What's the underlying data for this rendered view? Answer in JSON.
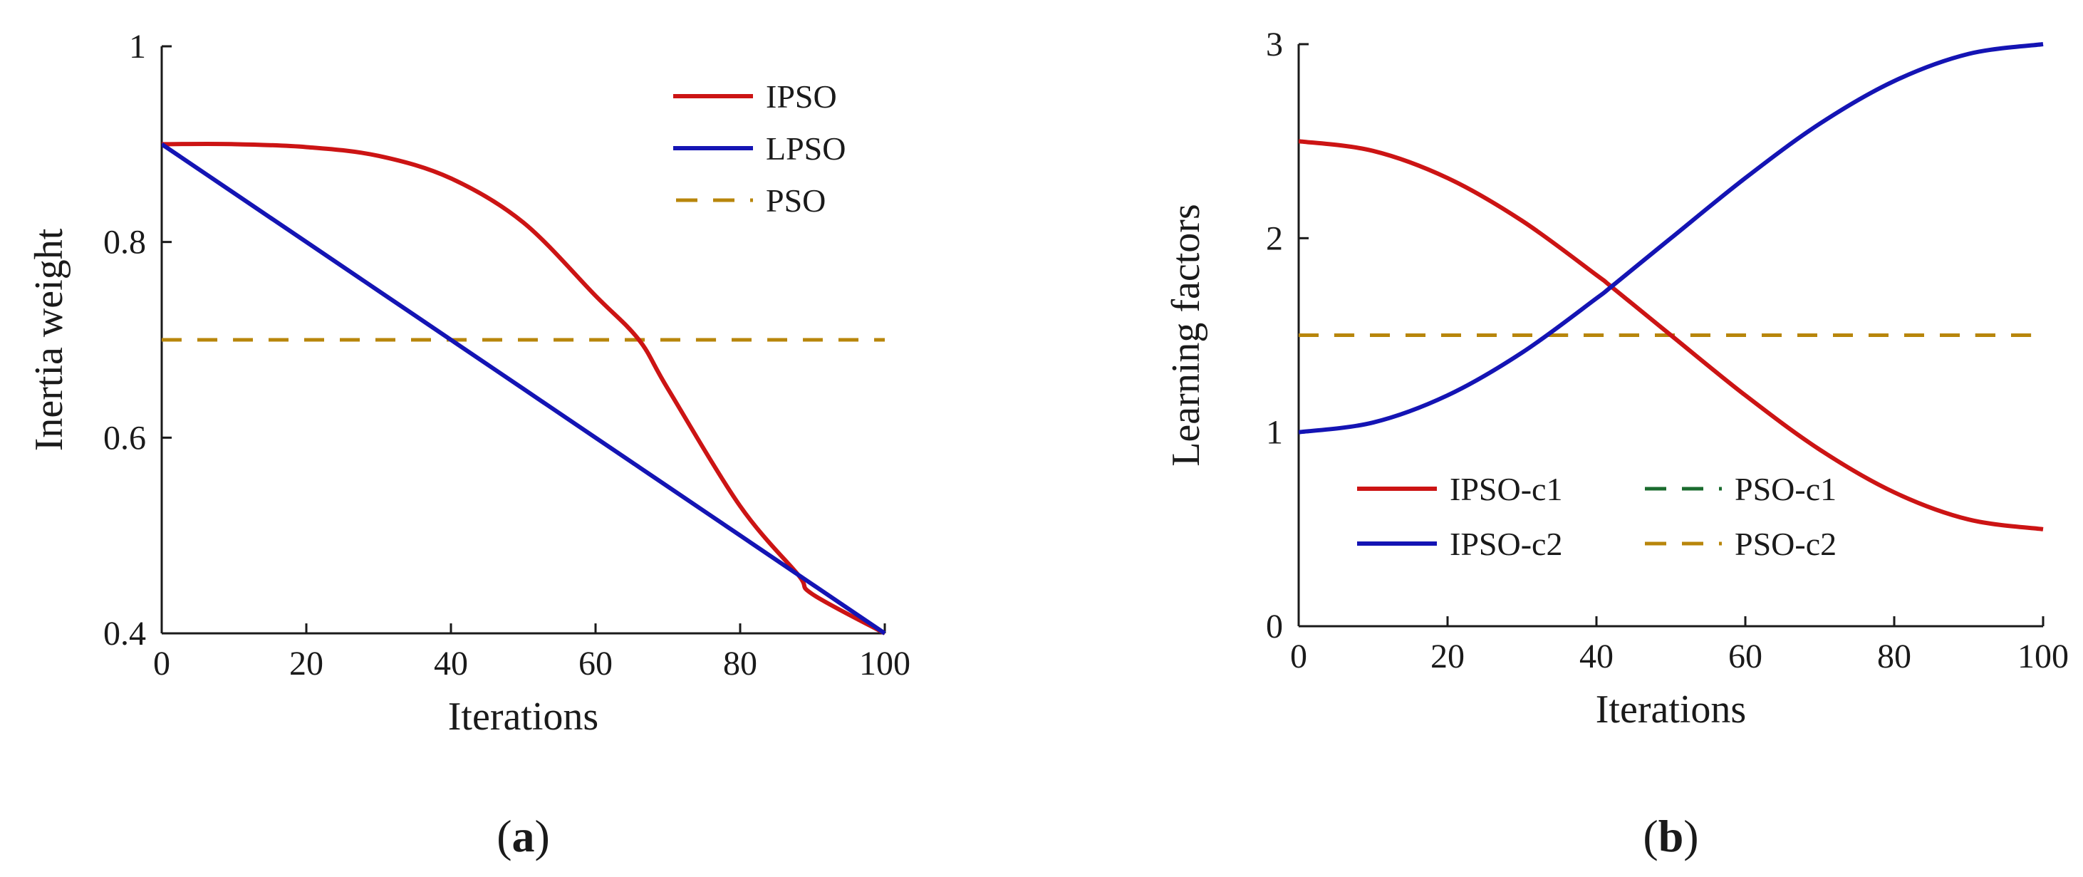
{
  "chart_data": [
    {
      "type": "line",
      "panel_label": "a",
      "xlabel": "Iterations",
      "ylabel": "Inertia  weight",
      "xlim": [
        0,
        100
      ],
      "ylim": [
        0.4,
        1.0
      ],
      "xticks": [
        "0",
        "20",
        "40",
        "60",
        "80",
        "100"
      ],
      "yticks": [
        "0.4",
        "0.6",
        "0.8",
        "1"
      ],
      "grid": false,
      "legend_position": "top-right",
      "x": [
        0,
        10,
        20,
        30,
        40,
        50,
        60,
        66,
        70,
        80,
        88,
        90,
        100
      ],
      "series": [
        {
          "name": "IPSO",
          "color": "#cc1414",
          "style": "solid",
          "values": [
            0.9,
            0.9,
            0.897,
            0.888,
            0.865,
            0.82,
            0.745,
            0.7,
            0.65,
            0.53,
            0.46,
            0.44,
            0.4
          ]
        },
        {
          "name": "LPSO",
          "color": "#1414b4",
          "style": "solid",
          "values": [
            0.9,
            0.85,
            0.8,
            0.75,
            0.7,
            0.65,
            0.6,
            0.57,
            0.55,
            0.5,
            0.46,
            0.45,
            0.4
          ]
        },
        {
          "name": "PSO",
          "color": "#b8860b",
          "style": "dashed",
          "values": [
            0.7,
            0.7,
            0.7,
            0.7,
            0.7,
            0.7,
            0.7,
            0.7,
            0.7,
            0.7,
            0.7,
            0.7,
            0.7
          ]
        }
      ]
    },
    {
      "type": "line",
      "panel_label": "b",
      "xlabel": "Iterations",
      "ylabel": "Learning  factors",
      "xlim": [
        0,
        100
      ],
      "ylim": [
        0,
        3
      ],
      "xticks": [
        "0",
        "20",
        "40",
        "60",
        "80",
        "100"
      ],
      "yticks": [
        "0",
        "1",
        "2",
        "3"
      ],
      "grid": false,
      "legend_position": "bottom-left",
      "x": [
        0,
        10,
        20,
        30,
        40,
        42,
        50,
        60,
        70,
        80,
        90,
        100
      ],
      "series": [
        {
          "name": "IPSO-c1",
          "color": "#cc1414",
          "style": "solid",
          "values": [
            2.5,
            2.45,
            2.31,
            2.09,
            1.81,
            1.75,
            1.5,
            1.19,
            0.91,
            0.69,
            0.55,
            0.5
          ]
        },
        {
          "name": "IPSO-c2",
          "color": "#1414b4",
          "style": "solid",
          "values": [
            1.0,
            1.05,
            1.19,
            1.41,
            1.69,
            1.75,
            2.0,
            2.31,
            2.59,
            2.81,
            2.95,
            3.0
          ]
        },
        {
          "name": "PSO-c1",
          "color": "#1a6b2e",
          "style": "dashed",
          "values": [
            1.5,
            1.5,
            1.5,
            1.5,
            1.5,
            1.5,
            1.5,
            1.5,
            1.5,
            1.5,
            1.5,
            1.5
          ]
        },
        {
          "name": "PSO-c2",
          "color": "#b8860b",
          "style": "dashed",
          "values": [
            1.5,
            1.5,
            1.5,
            1.5,
            1.5,
            1.5,
            1.5,
            1.5,
            1.5,
            1.5,
            1.5,
            1.5
          ]
        }
      ]
    }
  ]
}
